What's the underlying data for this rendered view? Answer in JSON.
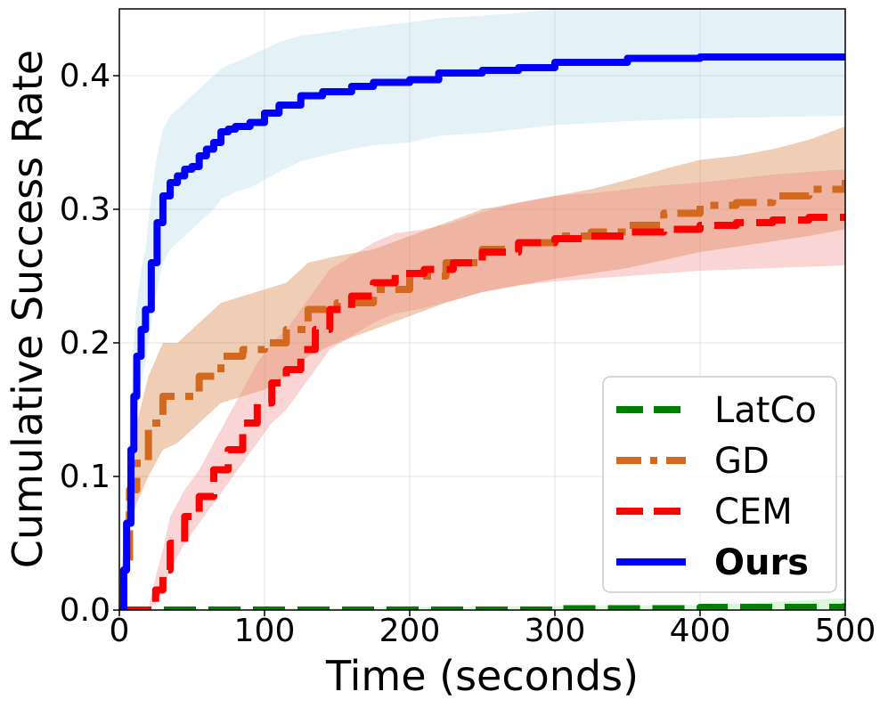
{
  "chart_data": {
    "type": "line",
    "xlabel": "Time (seconds)",
    "ylabel": "Cumulative Success Rate",
    "xlim": [
      0,
      500
    ],
    "ylim": [
      0,
      0.45
    ],
    "x_ticks": [
      "0",
      "100",
      "200",
      "300",
      "400",
      "500"
    ],
    "y_ticks": [
      "0.0",
      "0.1",
      "0.2",
      "0.3",
      "0.4"
    ],
    "grid": true,
    "legend_position": "lower-right",
    "series": [
      {
        "name": "LatCo",
        "color": "#008000",
        "style": "dashed",
        "bold": false,
        "band_color": "#90ee90",
        "x": [
          0,
          100,
          200,
          300,
          400,
          450,
          500
        ],
        "y": [
          0,
          0,
          0,
          0.001,
          0.002,
          0.002,
          0.005
        ],
        "lower": [
          0,
          0,
          0,
          0,
          0,
          0,
          0.001
        ],
        "upper": [
          0.001,
          0.001,
          0.002,
          0.003,
          0.004,
          0.006,
          0.009
        ]
      },
      {
        "name": "GD",
        "color": "#d2691e",
        "style": "dashdot",
        "bold": false,
        "band_color": "#d2691e",
        "x": [
          0,
          3,
          7,
          12,
          20,
          30,
          40,
          55,
          70,
          85,
          100,
          115,
          130,
          150,
          175,
          200,
          225,
          250,
          275,
          300,
          325,
          350,
          375,
          400,
          425,
          450,
          475,
          500
        ],
        "y": [
          0,
          0.03,
          0.09,
          0.11,
          0.14,
          0.16,
          0.16,
          0.175,
          0.19,
          0.195,
          0.2,
          0.21,
          0.225,
          0.23,
          0.24,
          0.25,
          0.26,
          0.27,
          0.275,
          0.28,
          0.283,
          0.288,
          0.297,
          0.303,
          0.305,
          0.31,
          0.315,
          0.322
        ],
        "lower": [
          0,
          0.015,
          0.06,
          0.08,
          0.1,
          0.12,
          0.125,
          0.14,
          0.155,
          0.16,
          0.165,
          0.175,
          0.19,
          0.2,
          0.21,
          0.22,
          0.23,
          0.238,
          0.243,
          0.248,
          0.252,
          0.256,
          0.262,
          0.268,
          0.272,
          0.276,
          0.28,
          0.285
        ],
        "upper": [
          0.005,
          0.05,
          0.12,
          0.14,
          0.175,
          0.2,
          0.2,
          0.215,
          0.23,
          0.235,
          0.24,
          0.245,
          0.26,
          0.265,
          0.27,
          0.28,
          0.29,
          0.3,
          0.305,
          0.31,
          0.315,
          0.322,
          0.33,
          0.337,
          0.34,
          0.345,
          0.352,
          0.362
        ]
      },
      {
        "name": "CEM",
        "color": "#ff0000",
        "style": "dashed",
        "bold": false,
        "band_color": "#f08080",
        "x": [
          0,
          20,
          25,
          30,
          35,
          45,
          55,
          65,
          75,
          85,
          95,
          105,
          115,
          125,
          135,
          145,
          160,
          175,
          190,
          210,
          230,
          250,
          275,
          300,
          325,
          350,
          375,
          400,
          425,
          450,
          475,
          500
        ],
        "y": [
          0,
          0,
          0.015,
          0.03,
          0.05,
          0.07,
          0.085,
          0.105,
          0.12,
          0.14,
          0.155,
          0.17,
          0.18,
          0.195,
          0.21,
          0.225,
          0.235,
          0.245,
          0.252,
          0.255,
          0.26,
          0.268,
          0.275,
          0.278,
          0.28,
          0.283,
          0.285,
          0.288,
          0.29,
          0.292,
          0.294,
          0.295
        ],
        "lower": [
          0,
          0,
          0.005,
          0.015,
          0.03,
          0.05,
          0.065,
          0.08,
          0.095,
          0.11,
          0.125,
          0.14,
          0.15,
          0.165,
          0.18,
          0.195,
          0.205,
          0.215,
          0.222,
          0.226,
          0.232,
          0.238,
          0.243,
          0.246,
          0.248,
          0.25,
          0.252,
          0.254,
          0.255,
          0.256,
          0.257,
          0.258
        ],
        "upper": [
          0.001,
          0.002,
          0.025,
          0.045,
          0.07,
          0.09,
          0.105,
          0.125,
          0.145,
          0.165,
          0.185,
          0.2,
          0.21,
          0.225,
          0.24,
          0.255,
          0.265,
          0.275,
          0.282,
          0.285,
          0.29,
          0.298,
          0.305,
          0.31,
          0.312,
          0.315,
          0.318,
          0.32,
          0.323,
          0.326,
          0.328,
          0.33
        ]
      },
      {
        "name": "Ours",
        "color": "#0000ff",
        "style": "solid",
        "bold": true,
        "band_color": "#add8e6",
        "x": [
          0,
          3,
          5,
          8,
          10,
          12,
          15,
          18,
          22,
          26,
          30,
          35,
          40,
          45,
          50,
          55,
          60,
          65,
          70,
          75,
          80,
          90,
          100,
          110,
          125,
          140,
          160,
          175,
          200,
          220,
          250,
          275,
          300,
          350,
          400,
          450,
          500
        ],
        "y": [
          0,
          0.03,
          0.065,
          0.12,
          0.16,
          0.19,
          0.21,
          0.225,
          0.26,
          0.29,
          0.31,
          0.32,
          0.325,
          0.33,
          0.332,
          0.34,
          0.345,
          0.35,
          0.358,
          0.36,
          0.362,
          0.365,
          0.372,
          0.378,
          0.385,
          0.388,
          0.392,
          0.395,
          0.397,
          0.402,
          0.404,
          0.406,
          0.41,
          0.413,
          0.414,
          0.414,
          0.415
        ],
        "lower": [
          0,
          0.02,
          0.045,
          0.09,
          0.125,
          0.15,
          0.17,
          0.185,
          0.215,
          0.24,
          0.26,
          0.27,
          0.275,
          0.28,
          0.285,
          0.29,
          0.295,
          0.3,
          0.308,
          0.31,
          0.313,
          0.316,
          0.322,
          0.328,
          0.336,
          0.34,
          0.345,
          0.348,
          0.35,
          0.355,
          0.357,
          0.36,
          0.363,
          0.366,
          0.368,
          0.369,
          0.37
        ],
        "upper": [
          0.005,
          0.04,
          0.085,
          0.15,
          0.2,
          0.23,
          0.255,
          0.27,
          0.31,
          0.34,
          0.36,
          0.37,
          0.375,
          0.38,
          0.385,
          0.39,
          0.395,
          0.4,
          0.405,
          0.408,
          0.41,
          0.415,
          0.42,
          0.425,
          0.43,
          0.432,
          0.435,
          0.437,
          0.44,
          0.443,
          0.445,
          0.447,
          0.45,
          0.452,
          0.455,
          0.456,
          0.458
        ]
      }
    ]
  }
}
